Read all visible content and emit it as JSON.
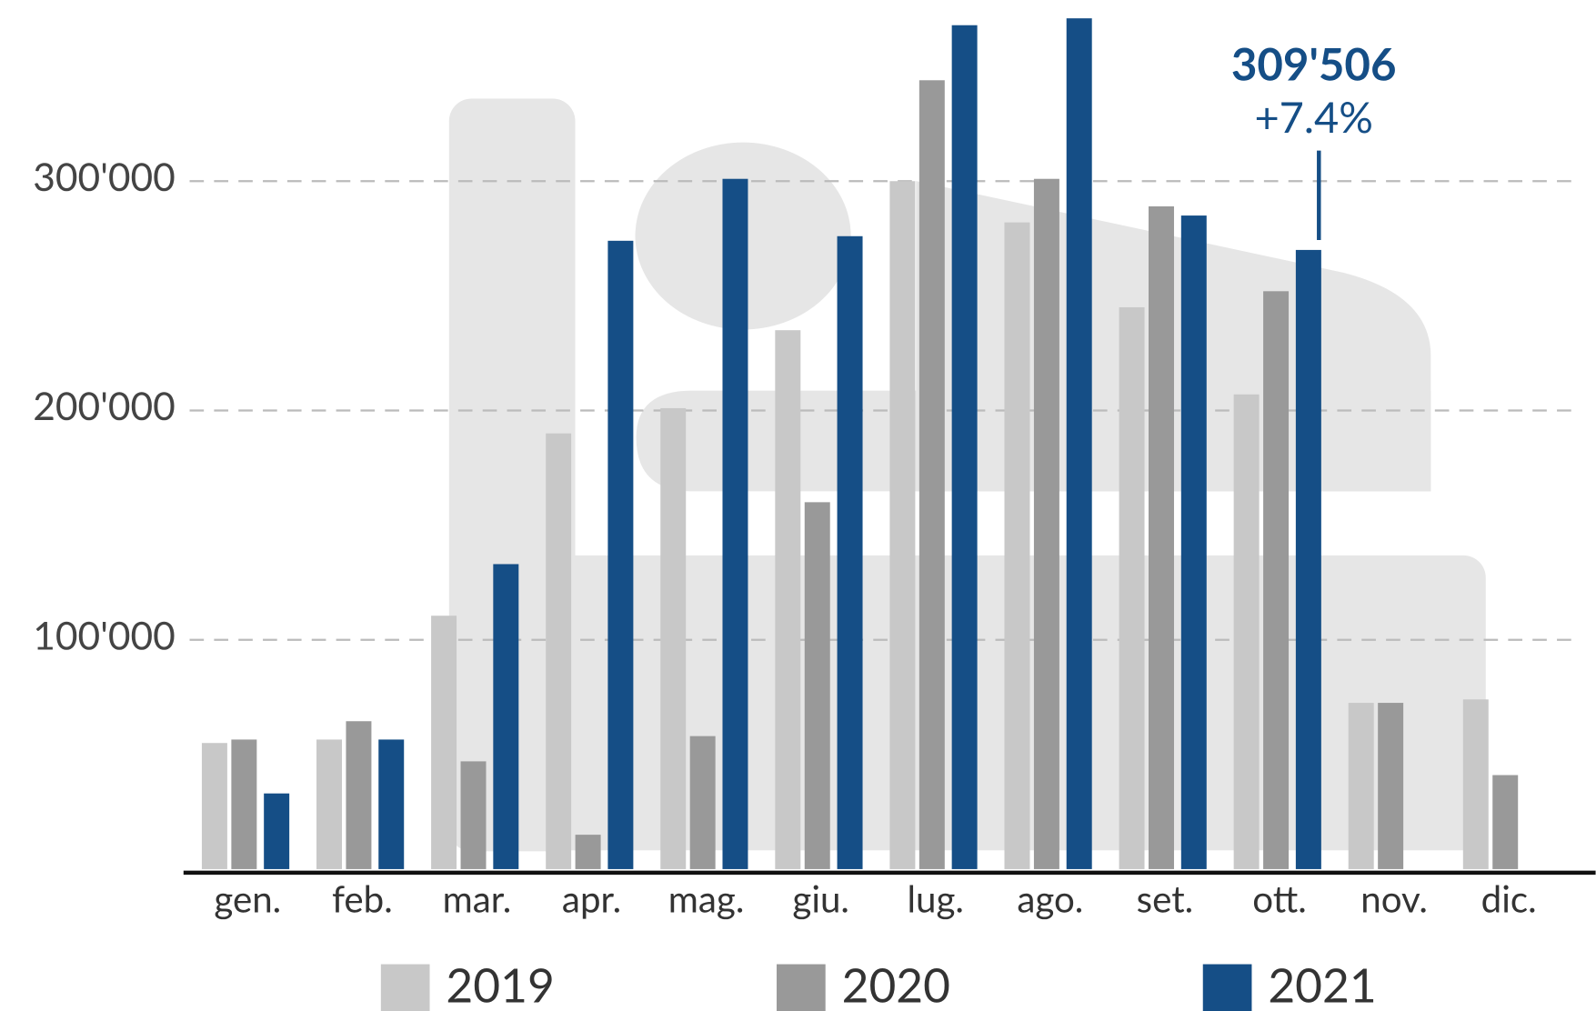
{
  "chart_data": {
    "type": "bar",
    "categories": [
      "gen.",
      "feb.",
      "mar.",
      "apr.",
      "mag.",
      "giu.",
      "lug.",
      "ago.",
      "set.",
      "ott.",
      "nov.",
      "dic."
    ],
    "series": [
      {
        "name": "2019",
        "color": "#c8c8c8",
        "values": [
          55000,
          56500,
          110500,
          190000,
          201000,
          235000,
          300000,
          282000,
          245000,
          207000,
          72500,
          74000
        ]
      },
      {
        "name": "2020",
        "color": "#999999",
        "values": [
          56500,
          64500,
          47000,
          15000,
          58000,
          160000,
          344000,
          301000,
          289000,
          252000,
          72500,
          41000
        ]
      },
      {
        "name": "2021",
        "color": "#154e86",
        "values": [
          33000,
          56500,
          133000,
          274000,
          301000,
          276000,
          368000,
          371000,
          285000,
          270000,
          null,
          null
        ]
      }
    ],
    "ylim": [
      0,
      375000
    ],
    "yticks": [
      {
        "value": 100000,
        "label": "100'000"
      },
      {
        "value": 200000,
        "label": "200'000"
      },
      {
        "value": 300000,
        "label": "300'000"
      }
    ],
    "grid": true,
    "annotation": {
      "value": "309'506",
      "change": "+7.4%",
      "color": "#154e86"
    }
  }
}
